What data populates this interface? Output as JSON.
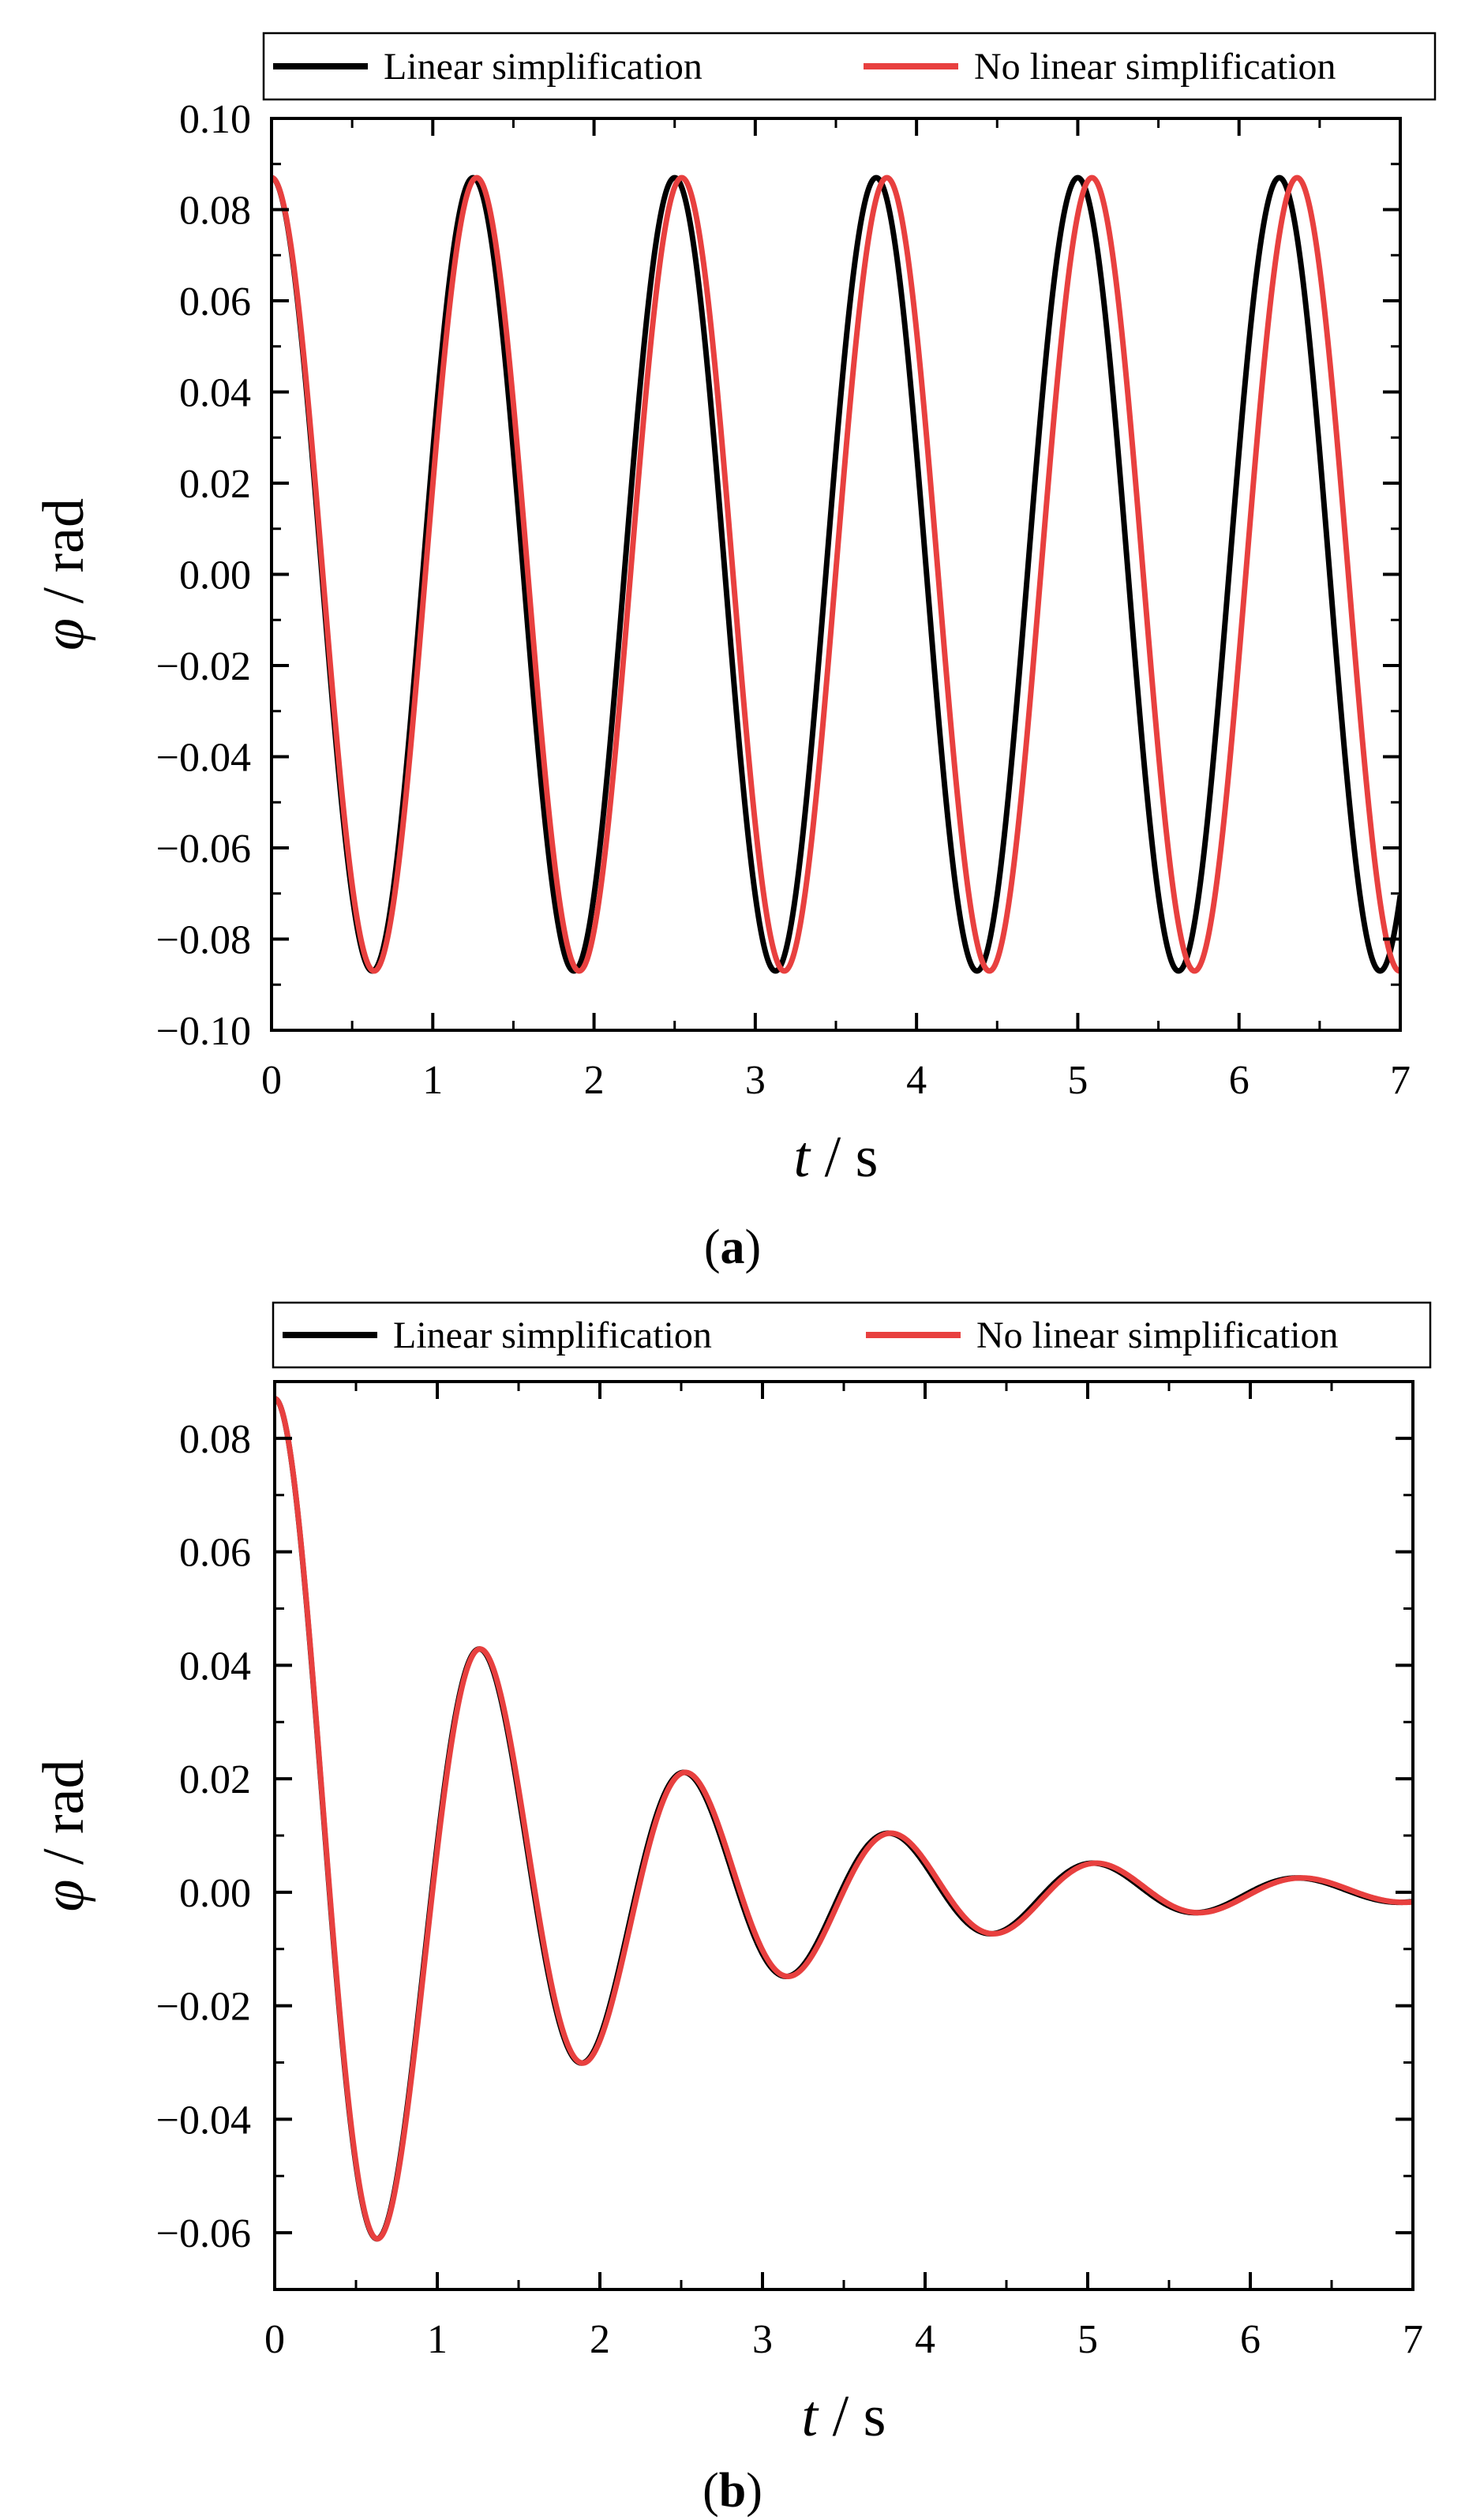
{
  "chart_data": [
    {
      "id": "a",
      "type": "line",
      "panel_label": {
        "open": "(",
        "letter": "a",
        "close": ")"
      },
      "xlabel": {
        "var": "t",
        "unit": " / s"
      },
      "ylabel": {
        "var": "φ",
        "unit": " / rad"
      },
      "xlim": [
        0,
        7
      ],
      "ylim": [
        -0.1,
        0.1
      ],
      "xticks": [
        0,
        1,
        2,
        3,
        4,
        5,
        6,
        7
      ],
      "xtick_labels": [
        "0",
        "1",
        "2",
        "3",
        "4",
        "5",
        "6",
        "7"
      ],
      "yticks": [
        -0.1,
        -0.08,
        -0.06,
        -0.04,
        -0.02,
        0.0,
        0.02,
        0.04,
        0.06,
        0.08,
        0.1
      ],
      "ytick_labels": [
        "−0.10",
        "−0.08",
        "−0.06",
        "−0.04",
        "−0.02",
        "0.00",
        "0.02",
        "0.04",
        "0.06",
        "0.08",
        "0.10"
      ],
      "grid": false,
      "legend_position": "top, outside, horizontal",
      "series": [
        {
          "name": "Linear simplification",
          "color": "#000000",
          "model": {
            "amplitude": 0.087,
            "period": 1.25,
            "decay_per_period": 1.0
          }
        },
        {
          "name": "No linear simplification",
          "color": "#e8403f",
          "model": {
            "amplitude": 0.087,
            "period": 1.272,
            "decay_per_period": 1.0
          }
        }
      ]
    },
    {
      "id": "b",
      "type": "line",
      "panel_label": {
        "open": "(",
        "letter": "b",
        "close": ")"
      },
      "xlabel": {
        "var": "t",
        "unit": " / s"
      },
      "ylabel": {
        "var": "φ",
        "unit": " / rad"
      },
      "xlim": [
        0,
        7
      ],
      "ylim": [
        -0.07,
        0.09
      ],
      "xticks": [
        0,
        1,
        2,
        3,
        4,
        5,
        6,
        7
      ],
      "xtick_labels": [
        "0",
        "1",
        "2",
        "3",
        "4",
        "5",
        "6",
        "7"
      ],
      "yticks": [
        -0.06,
        -0.04,
        -0.02,
        0.0,
        0.02,
        0.04,
        0.06,
        0.08
      ],
      "ytick_labels": [
        "−0.06",
        "−0.04",
        "−0.02",
        "0.00",
        "0.02",
        "0.04",
        "0.06",
        "0.08"
      ],
      "grid": false,
      "legend_position": "top, outside, horizontal",
      "series": [
        {
          "name": "Linear simplification",
          "color": "#000000",
          "model": {
            "amplitude": 0.087,
            "period": 1.25,
            "decay_per_period": 0.495
          }
        },
        {
          "name": "No linear simplification",
          "color": "#e8403f",
          "model": {
            "amplitude": 0.087,
            "period": 1.255,
            "decay_per_period": 0.495
          }
        }
      ]
    }
  ]
}
